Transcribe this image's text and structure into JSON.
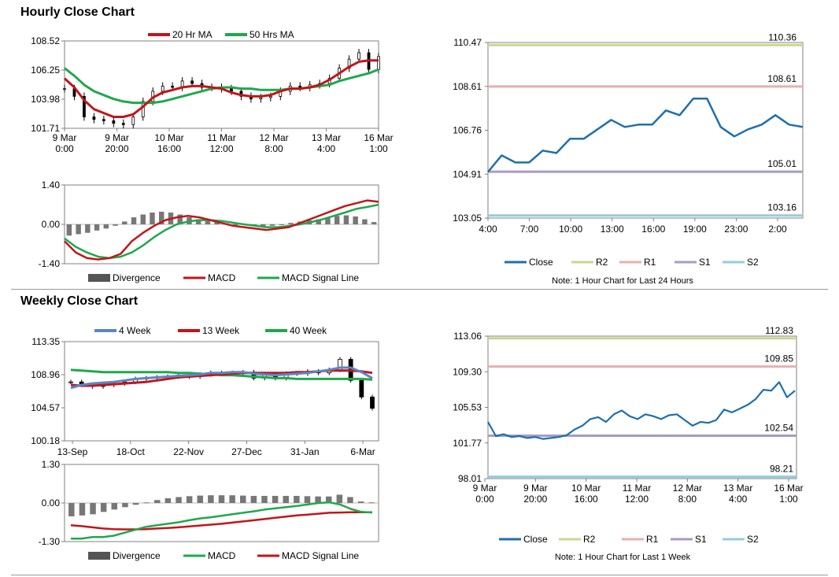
{
  "sections": {
    "hourly_title": "Hourly Close Chart",
    "weekly_title": "Weekly Close Chart"
  },
  "chart_data": [
    {
      "id": "hourly_price",
      "type": "line",
      "legend": [
        "20 Hr MA",
        "50 Hrs MA"
      ],
      "colors": {
        "ma20": "#c0161a",
        "ma50": "#1fa84d",
        "candle": "#000000"
      },
      "ylim": [
        101.71,
        108.52
      ],
      "yticks": [
        "108.52",
        "106.25",
        "103.98",
        "101.71"
      ],
      "xticks": [
        [
          "9 Mar",
          "0:00"
        ],
        [
          "9 Mar",
          "20:00"
        ],
        [
          "10 Mar",
          "16:00"
        ],
        [
          "11 Mar",
          "12:00"
        ],
        [
          "12 Mar",
          "8:00"
        ],
        [
          "13 Mar",
          "4:00"
        ],
        [
          "16 Mar",
          "1:00"
        ]
      ],
      "series": [
        {
          "name": "Close",
          "values": [
            104.8,
            104.2,
            102.6,
            102.4,
            102.3,
            102.1,
            102.0,
            102.6,
            103.8,
            104.6,
            105.0,
            104.9,
            105.4,
            105.2,
            104.9,
            104.9,
            104.8,
            104.6,
            104.2,
            104.0,
            104.1,
            104.2,
            104.6,
            105.0,
            104.9,
            105.1,
            105.2,
            105.6,
            106.4,
            107.1,
            107.6,
            106.3,
            107.3
          ]
        },
        {
          "name": "20 Hr MA",
          "values": [
            105.6,
            104.9,
            103.9,
            103.2,
            102.9,
            102.6,
            102.6,
            102.8,
            103.4,
            104.1,
            104.5,
            104.7,
            104.9,
            105.0,
            105.0,
            104.9,
            104.8,
            104.5,
            104.3,
            104.2,
            104.2,
            104.3,
            104.6,
            104.8,
            104.8,
            104.9,
            105.1,
            105.5,
            106.0,
            106.5,
            106.9,
            107.0,
            107.0
          ]
        },
        {
          "name": "50 Hrs MA",
          "values": [
            106.4,
            105.8,
            105.1,
            104.6,
            104.3,
            104.0,
            103.8,
            103.7,
            103.7,
            103.7,
            103.8,
            104.0,
            104.2,
            104.4,
            104.6,
            104.8,
            104.9,
            104.9,
            104.8,
            104.8,
            104.7,
            104.7,
            104.7,
            104.8,
            104.8,
            104.9,
            105.0,
            105.1,
            105.4,
            105.6,
            105.8,
            106.0,
            106.3
          ]
        }
      ]
    },
    {
      "id": "hourly_macd",
      "type": "line",
      "legend": [
        "Divergence",
        "MACD",
        "MACD Signal Line"
      ],
      "colors": {
        "div": "#777777",
        "macd": "#c0161a",
        "signal": "#1fa84d"
      },
      "ylim": [
        -1.4,
        1.4
      ],
      "yticks": [
        "1.40",
        "0.00",
        "-1.40"
      ],
      "series": [
        {
          "name": "Divergence",
          "values": [
            -0.4,
            -0.35,
            -0.3,
            -0.22,
            -0.15,
            -0.05,
            0.1,
            0.25,
            0.35,
            0.42,
            0.45,
            0.42,
            0.35,
            0.25,
            0.18,
            0.12,
            0.08,
            0.04,
            0.0,
            -0.02,
            -0.05,
            -0.08,
            -0.05,
            0.0,
            0.05,
            0.1,
            0.14,
            0.18,
            0.22,
            0.3,
            0.32,
            0.28,
            0.18,
            0.08
          ]
        },
        {
          "name": "MACD",
          "values": [
            -0.6,
            -1.0,
            -1.2,
            -1.25,
            -1.2,
            -1.05,
            -0.6,
            -0.3,
            -0.05,
            0.15,
            0.25,
            0.3,
            0.25,
            0.15,
            0.05,
            -0.05,
            -0.1,
            -0.15,
            -0.2,
            -0.15,
            -0.1,
            0.05,
            0.2,
            0.35,
            0.5,
            0.65,
            0.75,
            0.85,
            0.8
          ]
        },
        {
          "name": "MACD Signal Line",
          "values": [
            -0.5,
            -0.8,
            -1.0,
            -1.15,
            -1.2,
            -1.15,
            -1.0,
            -0.75,
            -0.45,
            -0.2,
            0.0,
            0.1,
            0.15,
            0.15,
            0.12,
            0.06,
            0.0,
            -0.05,
            -0.1,
            -0.1,
            -0.06,
            0.0,
            0.08,
            0.18,
            0.3,
            0.42,
            0.55,
            0.62,
            0.7
          ]
        }
      ]
    },
    {
      "id": "hourly_pivot",
      "type": "line",
      "ylim": [
        103.05,
        110.47
      ],
      "yticks": [
        "110.47",
        "108.61",
        "106.76",
        "104.91",
        "103.05"
      ],
      "xticks": [
        "4:00",
        "7:00",
        "10:00",
        "13:00",
        "16:00",
        "19:00",
        "23:00",
        "2:00"
      ],
      "levels": {
        "R2": "110.36",
        "R1": "108.61",
        "S1": "105.01",
        "S2": "103.16"
      },
      "level_values": {
        "R2": 110.36,
        "R1": 108.61,
        "S1": 105.01,
        "S2": 103.16
      },
      "legend": [
        "Close",
        "R2",
        "R1",
        "S1",
        "S2"
      ],
      "colors": {
        "close": "#1f6fad",
        "R2": "#c6d88f",
        "R1": "#e6b0ad",
        "S1": "#a89bc4",
        "S2": "#93cddd"
      },
      "note": "Note: 1 Hour Chart for Last 24 Hours",
      "series": [
        {
          "name": "Close",
          "values": [
            105.0,
            105.7,
            105.4,
            105.4,
            105.9,
            105.8,
            106.4,
            106.4,
            106.8,
            107.2,
            106.9,
            107.0,
            107.0,
            107.6,
            107.4,
            108.1,
            108.1,
            106.9,
            106.5,
            106.8,
            107.0,
            107.4,
            107.0,
            106.9
          ]
        }
      ]
    },
    {
      "id": "weekly_price",
      "type": "line",
      "legend": [
        "4 Week",
        "13 Week",
        "40 Week"
      ],
      "colors": {
        "w4": "#5b86c4",
        "w13": "#c0161a",
        "w40": "#1fa84d"
      },
      "ylim": [
        100.18,
        113.35
      ],
      "yticks": [
        "113.35",
        "108.96",
        "104.57",
        "100.18"
      ],
      "xticks": [
        "13-Sep",
        "18-Oct",
        "22-Nov",
        "27-Dec",
        "31-Jan",
        "6-Mar"
      ],
      "series": [
        {
          "name": "Close",
          "values": [
            108.0,
            107.6,
            107.4,
            107.6,
            107.8,
            108.0,
            108.4,
            108.5,
            108.6,
            108.7,
            108.9,
            108.7,
            109.0,
            109.2,
            109.1,
            109.2,
            109.3,
            108.5,
            108.9,
            108.5,
            109.1,
            109.1,
            109.4,
            109.2,
            109.6,
            111.0,
            108.2,
            106.0,
            104.5
          ]
        },
        {
          "name": "4 Week",
          "values": [
            107.2,
            107.6,
            107.8,
            107.9,
            108.0,
            108.2,
            108.4,
            108.5,
            108.6,
            108.7,
            108.8,
            108.9,
            109.0,
            109.2,
            109.2,
            109.3,
            109.3,
            109.1,
            109.0,
            108.9,
            109.0,
            109.1,
            109.2,
            109.4,
            109.6,
            109.9,
            109.9,
            109.3,
            108.5
          ]
        },
        {
          "name": "13 Week",
          "values": [
            107.6,
            107.5,
            107.5,
            107.6,
            107.7,
            107.8,
            107.9,
            108.0,
            108.2,
            108.4,
            108.6,
            108.7,
            108.8,
            108.9,
            109.0,
            109.1,
            109.2,
            109.2,
            109.2,
            109.2,
            109.2,
            109.3,
            109.3,
            109.4,
            109.5,
            109.5,
            109.5,
            109.4,
            109.2
          ]
        },
        {
          "name": "40 Week",
          "values": [
            109.6,
            109.5,
            109.4,
            109.3,
            109.3,
            109.3,
            109.3,
            109.3,
            109.3,
            109.3,
            109.2,
            109.2,
            109.1,
            109.0,
            108.9,
            108.9,
            108.8,
            108.7,
            108.6,
            108.5,
            108.5,
            108.4,
            108.4,
            108.4,
            108.4,
            108.4,
            108.4,
            108.4,
            108.3
          ]
        }
      ]
    },
    {
      "id": "weekly_macd",
      "type": "line",
      "legend": [
        "Divergence",
        "MACD",
        "MACD Signal Line"
      ],
      "colors": {
        "div": "#777777",
        "macd": "#1fa84d",
        "signal": "#c0161a"
      },
      "ylim": [
        -1.3,
        1.3
      ],
      "yticks": [
        "1.30",
        "0.00",
        "-1.30"
      ],
      "series": [
        {
          "name": "Divergence",
          "values": [
            -0.45,
            -0.42,
            -0.38,
            -0.3,
            -0.22,
            -0.14,
            -0.06,
            0.02,
            0.1,
            0.16,
            0.2,
            0.23,
            0.25,
            0.26,
            0.26,
            0.26,
            0.25,
            0.24,
            0.24,
            0.24,
            0.24,
            0.24,
            0.23,
            0.22,
            0.22,
            0.28,
            0.2,
            0.05,
            0.02
          ]
        },
        {
          "name": "MACD",
          "values": [
            -1.2,
            -1.2,
            -1.15,
            -1.15,
            -1.1,
            -1.0,
            -0.9,
            -0.8,
            -0.75,
            -0.7,
            -0.65,
            -0.58,
            -0.52,
            -0.48,
            -0.43,
            -0.38,
            -0.33,
            -0.28,
            -0.22,
            -0.18,
            -0.14,
            -0.1,
            -0.05,
            0.0,
            0.02,
            -0.05,
            -0.2,
            -0.3,
            -0.32
          ]
        },
        {
          "name": "MACD Signal Line",
          "values": [
            -0.75,
            -0.78,
            -0.82,
            -0.86,
            -0.88,
            -0.89,
            -0.89,
            -0.88,
            -0.86,
            -0.84,
            -0.82,
            -0.79,
            -0.76,
            -0.73,
            -0.7,
            -0.66,
            -0.62,
            -0.58,
            -0.54,
            -0.5,
            -0.46,
            -0.42,
            -0.39,
            -0.36,
            -0.33,
            -0.32,
            -0.31,
            -0.31,
            -0.31
          ]
        }
      ]
    },
    {
      "id": "weekly_pivot",
      "type": "line",
      "ylim": [
        98.01,
        113.06
      ],
      "yticks": [
        "113.06",
        "109.30",
        "105.53",
        "101.77",
        "98.01"
      ],
      "xticks": [
        [
          "9 Mar",
          "0:00"
        ],
        [
          "9 Mar",
          "20:00"
        ],
        [
          "10 Mar",
          "16:00"
        ],
        [
          "11 Mar",
          "12:00"
        ],
        [
          "12 Mar",
          "8:00"
        ],
        [
          "13 Mar",
          "4:00"
        ],
        [
          "16 Mar",
          "1:00"
        ]
      ],
      "levels": {
        "R2": "112.83",
        "R1": "109.85",
        "S1": "102.54",
        "S2": "98.21"
      },
      "level_values": {
        "R2": 112.83,
        "R1": 109.85,
        "S1": 102.54,
        "S2": 98.21
      },
      "legend": [
        "Close",
        "R2",
        "R1",
        "S1",
        "S2"
      ],
      "colors": {
        "close": "#1f6fad",
        "R2": "#c6d88f",
        "R1": "#e6b0ad",
        "S1": "#a89bc4",
        "S2": "#93cddd"
      },
      "note": "Note: 1 Hour Chart for Last 1 Week",
      "series": [
        {
          "name": "Close",
          "values": [
            104.0,
            102.5,
            102.7,
            102.4,
            102.5,
            102.3,
            102.4,
            102.2,
            102.3,
            102.4,
            102.6,
            103.2,
            103.6,
            104.3,
            104.5,
            104.0,
            104.8,
            105.2,
            104.6,
            104.3,
            104.8,
            104.6,
            104.3,
            104.7,
            104.8,
            104.2,
            103.6,
            104.0,
            103.9,
            104.2,
            105.3,
            105.0,
            105.4,
            105.8,
            106.4,
            107.4,
            107.3,
            108.2,
            106.6,
            107.3
          ]
        }
      ]
    }
  ]
}
